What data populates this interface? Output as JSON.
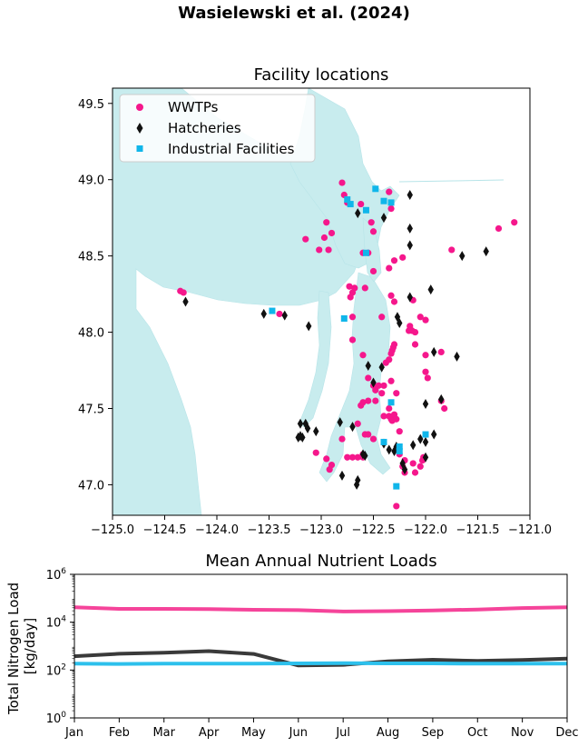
{
  "suptitle": "Wasielewski et al. (2024)",
  "chart_data": [
    {
      "type": "scatter",
      "title": "Facility locations",
      "xlabel": "",
      "ylabel": "",
      "xlim": [
        -125.0,
        -121.0
      ],
      "ylim": [
        46.8,
        49.6
      ],
      "x_ticks": [
        "−125.0",
        "−124.5",
        "−124.0",
        "−123.5",
        "−123.0",
        "−122.5",
        "−122.0",
        "−121.5",
        "−121.0"
      ],
      "x_tick_values": [
        -125.0,
        -124.5,
        -124.0,
        -123.5,
        -123.0,
        -122.5,
        -122.0,
        -121.5,
        -121.0
      ],
      "y_ticks": [
        "47.0",
        "47.5",
        "48.0",
        "48.5",
        "49.0",
        "49.5"
      ],
      "y_tick_values": [
        47.0,
        47.5,
        48.0,
        48.5,
        49.0,
        49.5
      ],
      "legend_position": "top-left",
      "water_color": "#c8ecee",
      "series": [
        {
          "name": "WWTPs",
          "marker": "circle",
          "color": "#f5178c",
          "points": [
            [
              -124.35,
              48.27
            ],
            [
              -124.32,
              48.26
            ],
            [
              -123.4,
              48.12
            ],
            [
              -123.15,
              48.61
            ],
            [
              -123.02,
              48.54
            ],
            [
              -122.97,
              48.62
            ],
            [
              -122.95,
              48.72
            ],
            [
              -122.93,
              48.54
            ],
            [
              -122.9,
              48.65
            ],
            [
              -122.8,
              48.98
            ],
            [
              -122.78,
              48.9
            ],
            [
              -122.75,
              48.85
            ],
            [
              -122.73,
              48.3
            ],
            [
              -122.72,
              48.23
            ],
            [
              -122.7,
              48.26
            ],
            [
              -122.68,
              48.29
            ],
            [
              -122.62,
              48.84
            ],
            [
              -122.6,
              48.52
            ],
            [
              -122.58,
              48.29
            ],
            [
              -122.55,
              48.52
            ],
            [
              -122.52,
              48.72
            ],
            [
              -122.5,
              48.66
            ],
            [
              -122.5,
              48.4
            ],
            [
              -122.42,
              48.1
            ],
            [
              -122.35,
              48.92
            ],
            [
              -122.33,
              48.81
            ],
            [
              -122.35,
              48.42
            ],
            [
              -122.33,
              48.24
            ],
            [
              -122.3,
              48.2
            ],
            [
              -122.3,
              48.47
            ],
            [
              -122.22,
              48.49
            ],
            [
              -122.15,
              48.04
            ],
            [
              -122.13,
              48.01
            ],
            [
              -122.16,
              48.01
            ],
            [
              -122.12,
              48.21
            ],
            [
              -122.1,
              48.0
            ],
            [
              -122.1,
              47.92
            ],
            [
              -122.05,
              48.1
            ],
            [
              -122.0,
              48.08
            ],
            [
              -122.0,
              47.85
            ],
            [
              -122.0,
              47.74
            ],
            [
              -121.98,
              47.7
            ],
            [
              -121.85,
              47.55
            ],
            [
              -121.82,
              47.5
            ],
            [
              -121.85,
              47.87
            ],
            [
              -121.75,
              48.54
            ],
            [
              -121.3,
              48.68
            ],
            [
              -121.15,
              48.72
            ],
            [
              -122.7,
              47.95
            ],
            [
              -122.7,
              48.1
            ],
            [
              -122.6,
              47.85
            ],
            [
              -122.55,
              47.7
            ],
            [
              -122.5,
              47.65
            ],
            [
              -122.48,
              47.62
            ],
            [
              -122.45,
              47.65
            ],
            [
              -122.42,
              47.6
            ],
            [
              -122.4,
              47.45
            ],
            [
              -122.38,
              47.8
            ],
            [
              -122.35,
              47.82
            ],
            [
              -122.33,
              47.86
            ],
            [
              -122.32,
              47.88
            ],
            [
              -122.31,
              47.9
            ],
            [
              -122.3,
              47.92
            ],
            [
              -122.35,
              47.45
            ],
            [
              -122.32,
              47.42
            ],
            [
              -122.33,
              47.43
            ],
            [
              -122.35,
              47.5
            ],
            [
              -122.3,
              47.46
            ],
            [
              -122.28,
              47.43
            ],
            [
              -122.25,
              47.35
            ],
            [
              -122.25,
              47.2
            ],
            [
              -122.22,
              47.12
            ],
            [
              -122.2,
              47.16
            ],
            [
              -122.2,
              47.08
            ],
            [
              -122.12,
              47.14
            ],
            [
              -122.1,
              47.08
            ],
            [
              -122.05,
              47.12
            ],
            [
              -122.03,
              47.16
            ],
            [
              -122.02,
              47.18
            ],
            [
              -122.55,
              47.55
            ],
            [
              -122.6,
              47.54
            ],
            [
              -122.62,
              47.52
            ],
            [
              -122.65,
              47.4
            ],
            [
              -122.58,
              47.33
            ],
            [
              -122.55,
              47.33
            ],
            [
              -122.5,
              47.3
            ],
            [
              -122.6,
              47.2
            ],
            [
              -122.6,
              47.18
            ],
            [
              -122.65,
              47.18
            ],
            [
              -122.8,
              47.3
            ],
            [
              -122.75,
              47.18
            ],
            [
              -122.7,
              47.18
            ],
            [
              -122.9,
              47.13
            ],
            [
              -122.92,
              47.1
            ],
            [
              -122.95,
              47.17
            ],
            [
              -123.05,
              47.21
            ],
            [
              -122.28,
              46.86
            ],
            [
              -122.4,
              47.65
            ],
            [
              -122.48,
              47.55
            ],
            [
              -122.33,
              47.68
            ],
            [
              -122.28,
              47.6
            ]
          ]
        },
        {
          "name": "Hatcheries",
          "marker": "thin_diamond",
          "color": "#111111",
          "points": [
            [
              -124.3,
              48.2
            ],
            [
              -123.55,
              48.12
            ],
            [
              -123.35,
              48.11
            ],
            [
              -123.12,
              48.04
            ],
            [
              -122.65,
              48.78
            ],
            [
              -122.4,
              48.75
            ],
            [
              -122.15,
              48.9
            ],
            [
              -122.15,
              48.68
            ],
            [
              -122.15,
              48.57
            ],
            [
              -122.15,
              48.23
            ],
            [
              -121.95,
              48.28
            ],
            [
              -121.65,
              48.5
            ],
            [
              -121.42,
              48.53
            ],
            [
              -122.27,
              48.1
            ],
            [
              -122.25,
              48.06
            ],
            [
              -122.42,
              47.77
            ],
            [
              -122.5,
              47.67
            ],
            [
              -121.92,
              47.87
            ],
            [
              -121.7,
              47.84
            ],
            [
              -121.85,
              47.56
            ],
            [
              -122.0,
              47.53
            ],
            [
              -122.55,
              47.78
            ],
            [
              -123.2,
              47.4
            ],
            [
              -123.15,
              47.4
            ],
            [
              -123.13,
              47.37
            ],
            [
              -123.2,
              47.32
            ],
            [
              -123.18,
              47.31
            ],
            [
              -123.22,
              47.31
            ],
            [
              -123.05,
              47.35
            ],
            [
              -122.82,
              47.41
            ],
            [
              -122.7,
              47.38
            ],
            [
              -122.6,
              47.2
            ],
            [
              -122.58,
              47.19
            ],
            [
              -122.65,
              47.03
            ],
            [
              -122.66,
              47.0
            ],
            [
              -122.8,
              47.06
            ],
            [
              -122.4,
              47.27
            ],
            [
              -122.35,
              47.23
            ],
            [
              -122.28,
              47.25
            ],
            [
              -122.3,
              47.22
            ],
            [
              -122.22,
              47.14
            ],
            [
              -122.2,
              47.1
            ],
            [
              -122.05,
              47.3
            ],
            [
              -122.0,
              47.28
            ],
            [
              -121.92,
              47.33
            ],
            [
              -122.0,
              47.18
            ],
            [
              -122.12,
              47.26
            ]
          ]
        },
        {
          "name": "Industrial Facilities",
          "marker": "square",
          "color": "#10b6ea",
          "points": [
            [
              -123.47,
              48.14
            ],
            [
              -122.78,
              48.09
            ],
            [
              -122.75,
              48.87
            ],
            [
              -122.72,
              48.84
            ],
            [
              -122.57,
              48.8
            ],
            [
              -122.48,
              48.94
            ],
            [
              -122.4,
              48.86
            ],
            [
              -122.33,
              48.85
            ],
            [
              -122.57,
              48.52
            ],
            [
              -122.33,
              47.54
            ],
            [
              -122.25,
              47.25
            ],
            [
              -122.25,
              47.22
            ],
            [
              -122.4,
              47.28
            ],
            [
              -122.28,
              46.99
            ],
            [
              -122.0,
              47.33
            ]
          ]
        }
      ]
    },
    {
      "type": "line",
      "title": "Mean Annual Nutrient Loads",
      "xlabel": "",
      "ylabel": "Total Nitrogen Load\n[kg/day]",
      "ylabel_lines": [
        "Total Nitrogen Load",
        "[kg/day]"
      ],
      "y_scale": "log",
      "ylim": [
        1,
        1000000
      ],
      "y_ticks": [
        {
          "base": "10",
          "exp": "0"
        },
        {
          "base": "10",
          "exp": "2"
        },
        {
          "base": "10",
          "exp": "4"
        },
        {
          "base": "10",
          "exp": "6"
        }
      ],
      "y_tick_values": [
        1,
        100,
        10000,
        1000000
      ],
      "categories": [
        "Jan",
        "Feb",
        "Mar",
        "Apr",
        "May",
        "Jun",
        "Jul",
        "Aug",
        "Sep",
        "Oct",
        "Nov",
        "Dec"
      ],
      "series": [
        {
          "name": "WWTPs",
          "color": "#f5449a",
          "values": [
            42000,
            36000,
            36000,
            35000,
            33000,
            32000,
            28000,
            29000,
            31000,
            34000,
            39000,
            42000
          ]
        },
        {
          "name": "Hatcheries",
          "color": "#3a3a3a",
          "values": [
            380,
            480,
            530,
            620,
            470,
            155,
            165,
            230,
            270,
            240,
            265,
            300
          ]
        },
        {
          "name": "Industrial Facilities",
          "color": "#2dc0ec",
          "values": [
            185,
            180,
            185,
            185,
            185,
            190,
            195,
            190,
            190,
            185,
            185,
            185
          ]
        }
      ]
    }
  ]
}
